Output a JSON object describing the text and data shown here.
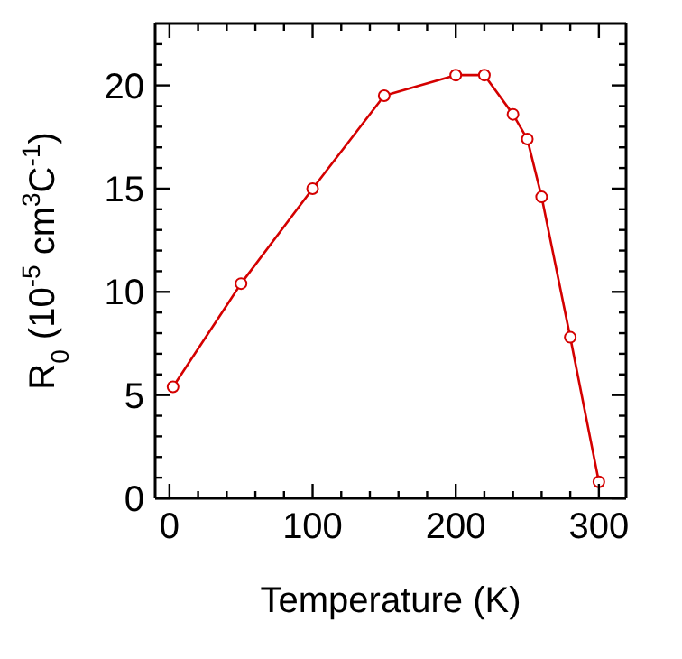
{
  "chart_data": {
    "type": "line",
    "xlabel": "Temperature (K)",
    "ylabel": "R$_{0}$ (10$^{-5}$ cm$^{3}$C$^{-1}$)",
    "x": [
      2.5,
      50,
      100,
      150,
      200,
      220,
      240,
      250,
      260,
      280,
      300
    ],
    "series": [
      {
        "color": "#d40000",
        "values": [
          5.4,
          10.4,
          15,
          19.5,
          20.5,
          20.5,
          18.6,
          17.4,
          14.6,
          7.8,
          0.8
        ]
      }
    ],
    "xlim": [
      -10,
      319
    ],
    "ylim": [
      0,
      23
    ],
    "xticks": [
      0,
      {
        "value": 20,
        "label": null
      },
      {
        "value": 40,
        "label": null
      },
      {
        "value": 60,
        "label": null
      },
      {
        "value": 80,
        "label": null
      },
      100,
      {
        "value": 120,
        "label": null
      },
      {
        "value": 140,
        "label": null
      },
      {
        "value": 160,
        "label": null
      },
      {
        "value": 180,
        "label": null
      },
      200,
      {
        "value": 220,
        "label": null
      },
      {
        "value": 240,
        "label": null
      },
      {
        "value": 260,
        "label": null
      },
      {
        "value": 280,
        "label": null
      },
      300
    ],
    "yticks": [
      0,
      {
        "value": 1,
        "label": null
      },
      {
        "value": 2,
        "label": null
      },
      {
        "value": 3,
        "label": null
      },
      {
        "value": 4,
        "label": null
      },
      5,
      {
        "value": 6,
        "label": null
      },
      {
        "value": 7,
        "label": null
      },
      {
        "value": 8,
        "label": null
      },
      {
        "value": 9,
        "label": null
      },
      10,
      {
        "value": 11,
        "label": null
      },
      {
        "value": 12,
        "label": null
      },
      {
        "value": 13,
        "label": null
      },
      {
        "value": 14,
        "label": null
      },
      15,
      {
        "value": 16,
        "label": null
      },
      {
        "value": 17,
        "label": null
      },
      {
        "value": 18,
        "label": null
      },
      {
        "value": 19,
        "label": null
      },
      20,
      {
        "value": 21,
        "label": null
      },
      {
        "value": 22,
        "label": null
      }
    ],
    "marker": "circle",
    "line_style": "solid",
    "grid": false,
    "legend": false
  }
}
